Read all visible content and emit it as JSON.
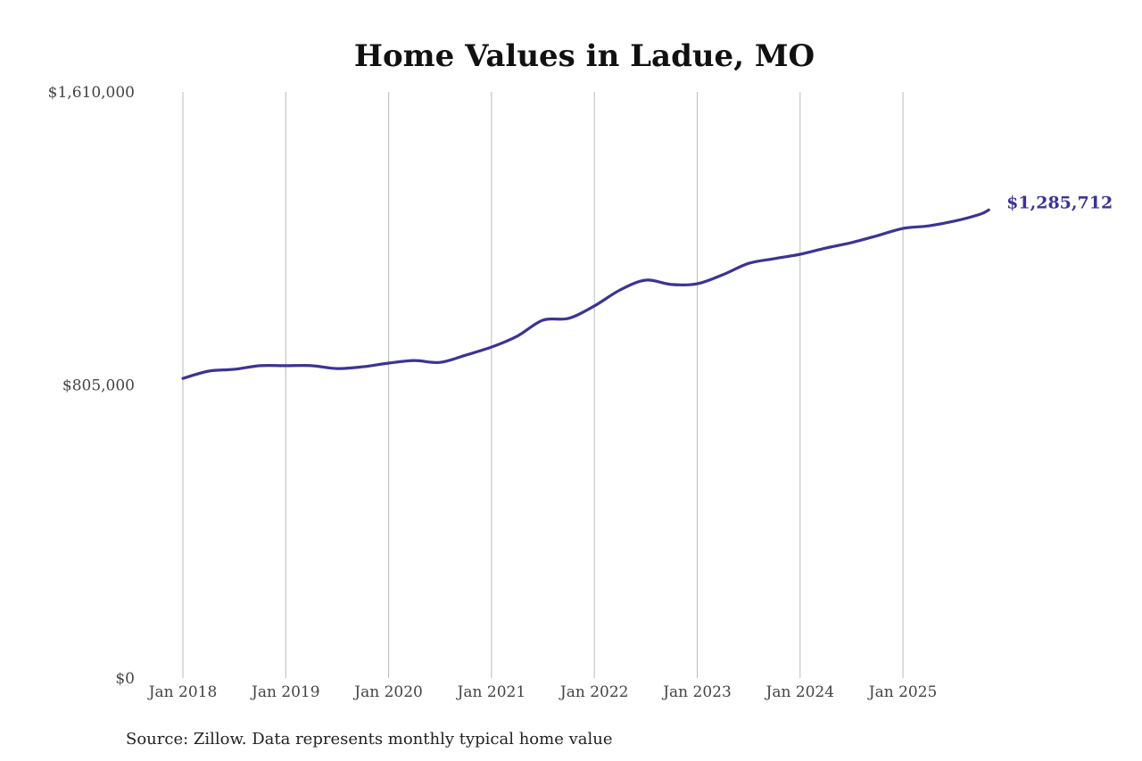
{
  "chart_data": {
    "type": "line",
    "title": "Home Values in Ladue, MO",
    "xlabel": "",
    "ylabel": "",
    "ylim": [
      0,
      1610000
    ],
    "y_ticks": [
      {
        "value": 0,
        "label": "$0"
      },
      {
        "value": 805000,
        "label": "$805,000"
      },
      {
        "value": 1610000,
        "label": "$1,610,000"
      }
    ],
    "x_ticks": [
      "Jan 2018",
      "Jan 2019",
      "Jan 2020",
      "Jan 2021",
      "Jan 2022",
      "Jan 2023",
      "Jan 2024",
      "Jan 2025"
    ],
    "grid": "vertical lines at x ticks",
    "line_color": "#3b3494",
    "series": [
      {
        "x": [
          "2018-01",
          "2018-04",
          "2018-07",
          "2018-10",
          "2019-01",
          "2019-04",
          "2019-07",
          "2019-10",
          "2020-01",
          "2020-04",
          "2020-07",
          "2020-10",
          "2021-01",
          "2021-04",
          "2021-07",
          "2021-10",
          "2022-01",
          "2022-04",
          "2022-07",
          "2022-10",
          "2023-01",
          "2023-04",
          "2023-07",
          "2023-10",
          "2024-01",
          "2024-04",
          "2024-07",
          "2024-10",
          "2025-01",
          "2025-04",
          "2025-07",
          "2025-10",
          "2025-11"
        ],
        "values": [
          823000,
          843000,
          848000,
          858000,
          858000,
          858000,
          850000,
          855000,
          865000,
          872000,
          867000,
          887000,
          909000,
          939000,
          983000,
          988000,
          1022000,
          1066000,
          1093000,
          1081000,
          1083000,
          1108000,
          1139000,
          1152000,
          1164000,
          1181000,
          1196000,
          1215000,
          1235000,
          1242000,
          1255000,
          1274000,
          1285712
        ]
      }
    ],
    "end_label": "$1,285,712"
  },
  "source": "Source: Zillow. Data represents monthly typical home value"
}
